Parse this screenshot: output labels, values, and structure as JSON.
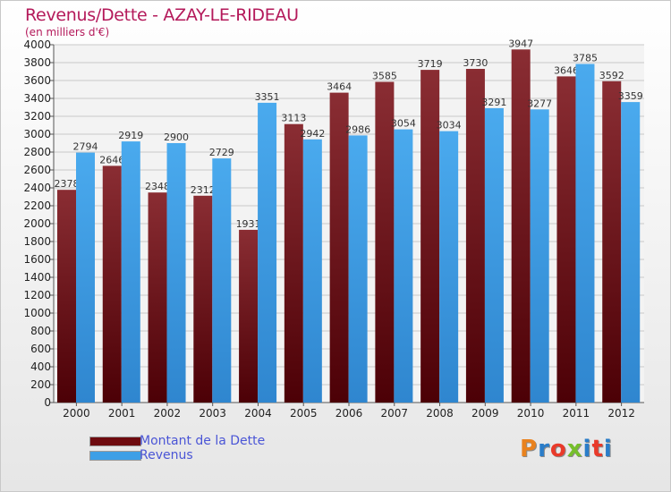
{
  "header": {
    "title": "Revenus/Dette - AZAY-LE-RIDEAU",
    "subtitle": "(en milliers d'€)"
  },
  "legend": {
    "items": [
      {
        "label": "Montant de la Dette",
        "color": "#6e0b0f"
      },
      {
        "label": "Revenus",
        "color": "#3d9fe6"
      }
    ]
  },
  "brand": {
    "text": "Proxiti",
    "colors": [
      "#e9821e",
      "#2a7dc9",
      "#e93a2a",
      "#76bf2b",
      "#2a7dc9",
      "#e93a2a",
      "#2a7dc9"
    ]
  },
  "chart_data": {
    "type": "bar",
    "categories": [
      "2000",
      "2001",
      "2002",
      "2003",
      "2004",
      "2005",
      "2006",
      "2007",
      "2008",
      "2009",
      "2010",
      "2011",
      "2012"
    ],
    "series": [
      {
        "name": "Montant de la Dette",
        "color": "#6e0b0f",
        "values": [
          2378,
          2646,
          2348,
          2312,
          1931,
          3113,
          3464,
          3585,
          3719,
          3730,
          3947,
          3646,
          3592
        ],
        "labels": [
          "2378",
          "2646",
          "2348",
          "2312",
          "1931",
          "3113",
          "3464",
          "3585",
          "3719",
          "3730",
          "3947",
          "3646",
          "3592"
        ]
      },
      {
        "name": "Revenus",
        "color": "#3d9fe6",
        "values": [
          2794,
          2919,
          2900,
          2729,
          3351,
          2942,
          2986,
          3054,
          3034,
          3291,
          3277,
          3785,
          3359
        ],
        "labels": [
          "2794",
          "2919",
          "2900",
          "2729",
          "3351",
          "2942",
          "2986",
          "3054",
          "3034",
          "3291",
          "3277",
          "3785",
          "3359"
        ]
      }
    ],
    "ylim": [
      0,
      4000
    ],
    "yticks": [
      0,
      200,
      400,
      600,
      800,
      1000,
      1200,
      1400,
      1600,
      1800,
      2000,
      2200,
      2400,
      2600,
      2800,
      3000,
      3200,
      3400,
      3600,
      3800,
      4000
    ],
    "grid": true,
    "legend_position": "bottom-left"
  }
}
